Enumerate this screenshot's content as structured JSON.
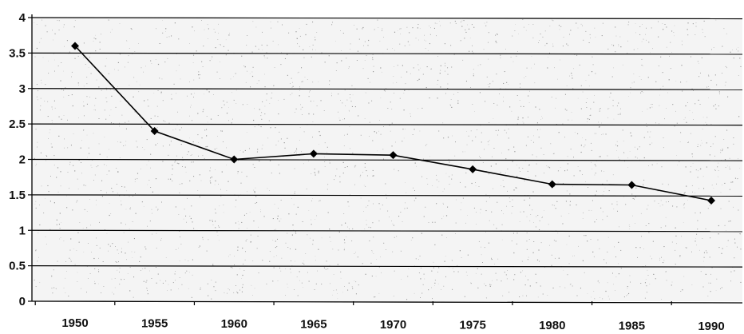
{
  "chart_data": {
    "type": "line",
    "title": "",
    "xlabel": "",
    "ylabel": "",
    "x": [
      "1950",
      "1955",
      "1960",
      "1965",
      "1970",
      "1975",
      "1980",
      "1985",
      "1990"
    ],
    "series": [
      {
        "values": [
          3.6,
          2.4,
          2.0,
          2.08,
          2.06,
          1.86,
          1.65,
          1.64,
          1.42
        ]
      }
    ],
    "ylim": [
      0,
      4
    ],
    "yticks": [
      "0",
      "0.5",
      "1",
      "1.5",
      "2",
      "2.5",
      "3",
      "3.5",
      "4"
    ],
    "grid": true,
    "legend": "none",
    "colors": {
      "line": "#000000",
      "marker": "#000000",
      "grid": "#000000",
      "plot_bg": "#f4f4f4",
      "speckle": "#9a9a9a"
    }
  }
}
